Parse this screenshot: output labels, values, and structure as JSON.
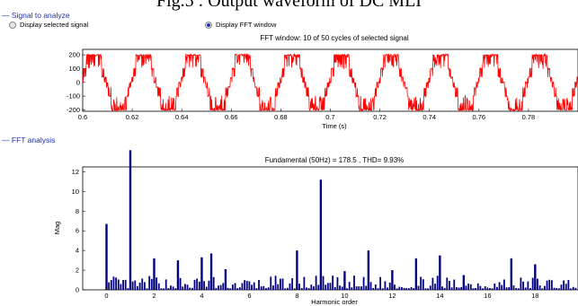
{
  "caption": "Fig.5 : Output waveform of DC MLI",
  "signal_group": {
    "label": "Signal to analyze",
    "option_selected": "Display selected signal",
    "option_fft": "Display FFT window",
    "checked": "fft"
  },
  "fft_group": {
    "label": "FFT analysis"
  },
  "colors": {
    "waveform": "#ff0000",
    "bars": "#000080",
    "group_label": "#1a2fb4"
  },
  "chart_data": [
    {
      "type": "line",
      "title": "FFT window: 10 of 50 cycles of selected signal",
      "xlabel": "Time (s)",
      "ylabel": "",
      "xlim": [
        0.6,
        0.8
      ],
      "ylim": [
        -210,
        240
      ],
      "xticks": [
        "0.6",
        "0.62",
        "0.64",
        "0.66",
        "0.68",
        "0.7",
        "0.72",
        "0.74",
        "0.76",
        "0.78"
      ],
      "yticks": [
        "200",
        "100",
        "0",
        "-100",
        "-200"
      ],
      "cycles": 10,
      "levels": [
        100,
        200
      ],
      "grid": false
    },
    {
      "type": "bar",
      "title": "Fundamental (50Hz) = 178.5 , THD= 9.93%",
      "xlabel": "Harmonic order",
      "ylabel": "Mag",
      "xlim": [
        -1,
        19.8
      ],
      "ylim": [
        0,
        12.5
      ],
      "xticks": [
        "0",
        "2",
        "4",
        "6",
        "8",
        "10",
        "12",
        "14",
        "16",
        "18"
      ],
      "yticks": [
        "12",
        "10",
        "8",
        "6",
        "4",
        "2",
        "0"
      ],
      "major": [
        {
          "x": 0,
          "y": 6.7
        },
        {
          "x": 1,
          "y": 14.2
        },
        {
          "x": 2,
          "y": 3.2
        },
        {
          "x": 3,
          "y": 3.0
        },
        {
          "x": 4,
          "y": 3.3
        },
        {
          "x": 4.4,
          "y": 3.7
        },
        {
          "x": 5,
          "y": 2.1
        },
        {
          "x": 8,
          "y": 4.0
        },
        {
          "x": 9,
          "y": 11.2
        },
        {
          "x": 10,
          "y": 1.9
        },
        {
          "x": 11,
          "y": 4.0
        },
        {
          "x": 12,
          "y": 2.0
        },
        {
          "x": 13,
          "y": 3.2
        },
        {
          "x": 14,
          "y": 3.5
        },
        {
          "x": 15,
          "y": 1.5
        },
        {
          "x": 17,
          "y": 3.2
        },
        {
          "x": 18,
          "y": 2.6
        }
      ],
      "grid": false
    }
  ]
}
